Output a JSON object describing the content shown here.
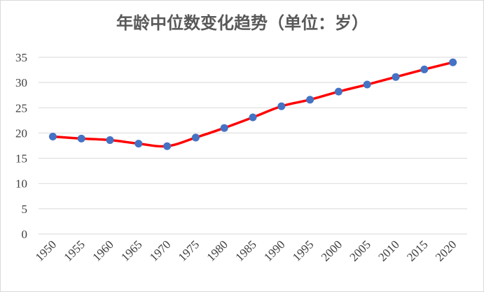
{
  "chart_data": {
    "type": "line",
    "title": "年龄中位数变化趋势（单位：岁）",
    "xlabel": "",
    "ylabel": "",
    "categories": [
      "1950",
      "1955",
      "1960",
      "1965",
      "1970",
      "1975",
      "1980",
      "1985",
      "1990",
      "1995",
      "2000",
      "2005",
      "2010",
      "2015",
      "2020"
    ],
    "series": [
      {
        "values": [
          19.3,
          18.9,
          18.6,
          17.9,
          17.4,
          19.1,
          21.0,
          23.1,
          25.3,
          26.6,
          28.2,
          29.6,
          31.1,
          32.6,
          34.0
        ]
      }
    ],
    "ylim": [
      0,
      35
    ],
    "yticks": [
      0,
      5,
      10,
      15,
      20,
      25,
      30,
      35
    ],
    "grid": true,
    "legend": "none",
    "colors": {
      "line": "#ff0000",
      "marker": "#4472c4",
      "grid": "#d9d9d9",
      "text": "#404040",
      "title": "#595959"
    }
  }
}
